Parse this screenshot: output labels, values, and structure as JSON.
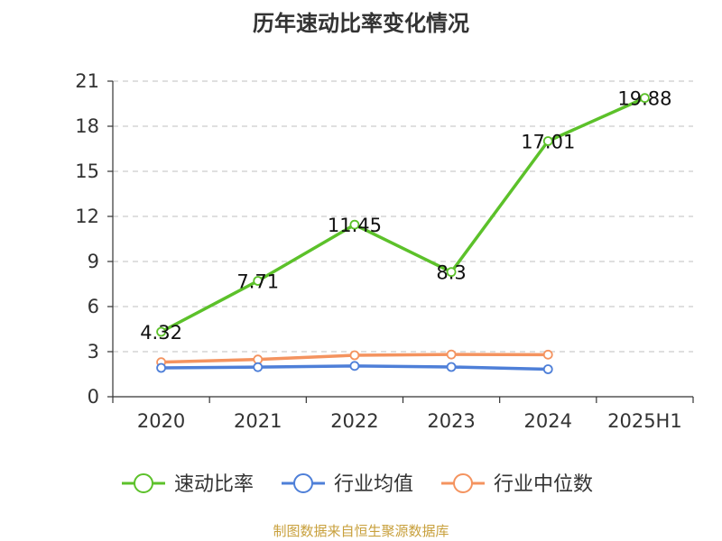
{
  "title": "历年速动比率变化情况",
  "footer": "制图数据来自恒生聚源数据库",
  "chart_data": {
    "type": "line",
    "categories": [
      "2020",
      "2021",
      "2022",
      "2023",
      "2024",
      "2025H1"
    ],
    "ylim": [
      0,
      21
    ],
    "yticks": [
      0,
      3,
      6,
      9,
      12,
      15,
      18,
      21
    ],
    "grid": true,
    "legend": "bottom",
    "series": [
      {
        "name": "速动比率",
        "color": "#5cc12a",
        "show_labels": true,
        "values": [
          4.32,
          7.71,
          11.45,
          8.3,
          17.01,
          19.88
        ]
      },
      {
        "name": "行业均值",
        "color": "#4e7fd8",
        "show_labels": false,
        "values": [
          1.92,
          1.97,
          2.05,
          1.98,
          1.83,
          null
        ]
      },
      {
        "name": "行业中位数",
        "color": "#f4935f",
        "show_labels": false,
        "values": [
          2.3,
          2.48,
          2.76,
          2.81,
          2.8,
          null
        ]
      }
    ]
  }
}
